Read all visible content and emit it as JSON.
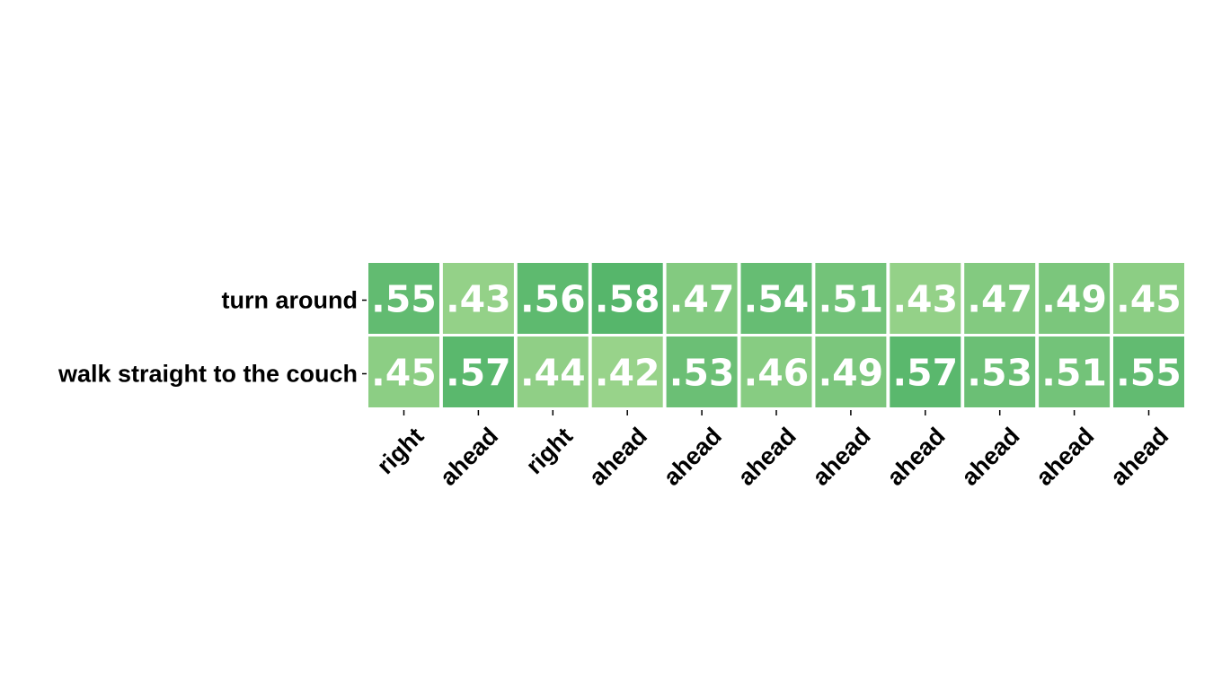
{
  "chart_data": {
    "type": "heatmap",
    "rows": [
      "turn around",
      "walk straight to the couch"
    ],
    "columns": [
      "right",
      "ahead",
      "right",
      "ahead",
      "ahead",
      "ahead",
      "ahead",
      "ahead",
      "ahead",
      "ahead",
      "ahead"
    ],
    "values": [
      [
        0.55,
        0.43,
        0.56,
        0.58,
        0.47,
        0.54,
        0.51,
        0.43,
        0.47,
        0.49,
        0.45
      ],
      [
        0.45,
        0.57,
        0.44,
        0.42,
        0.53,
        0.46,
        0.49,
        0.57,
        0.53,
        0.51,
        0.55
      ]
    ],
    "value_labels": [
      [
        ".55",
        ".43",
        ".56",
        ".58",
        ".47",
        ".54",
        ".51",
        ".43",
        ".47",
        ".49",
        ".45"
      ],
      [
        ".45",
        ".57",
        ".44",
        ".42",
        ".53",
        ".46",
        ".49",
        ".57",
        ".53",
        ".51",
        ".55"
      ]
    ],
    "color_scale": {
      "low": "#98d38a",
      "high": "#56b66b",
      "domain": [
        0.42,
        0.58
      ]
    },
    "title": "",
    "xlabel": "",
    "ylabel": ""
  }
}
